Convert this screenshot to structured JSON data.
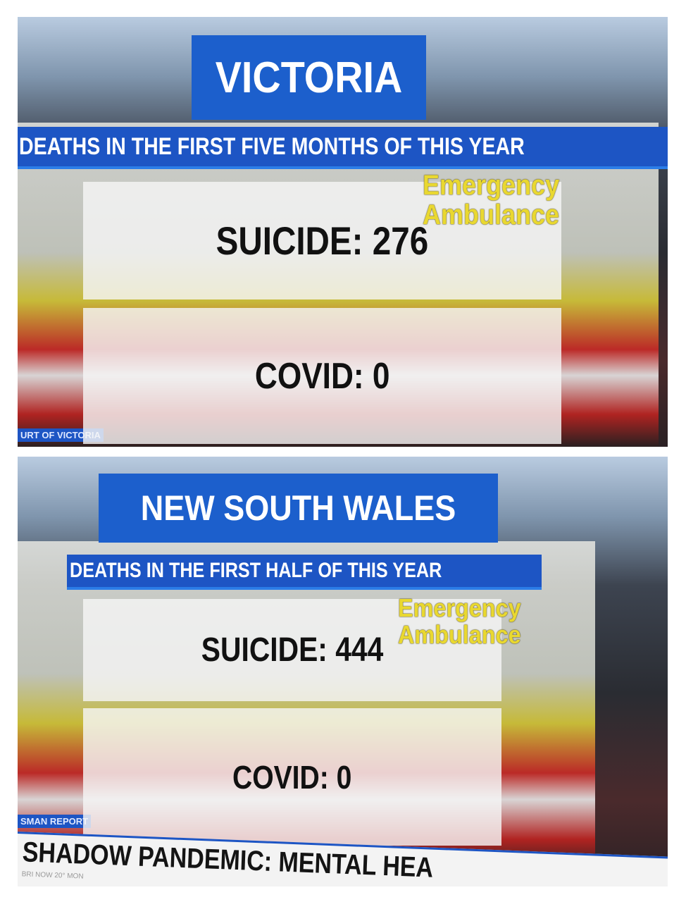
{
  "panels": [
    {
      "region": "VICTORIA",
      "subtitle": "DEATHS IN THE FIRST FIVE MONTHS OF THIS YEAR",
      "suicide": "SUICIDE: 276",
      "covid": "COVID: 0",
      "vehicle_text": [
        "Emergency",
        "Ambulance"
      ],
      "corner_tag": "URT OF VICTORIA"
    },
    {
      "region": "NEW SOUTH WALES",
      "subtitle": "DEATHS IN THE FIRST HALF OF THIS YEAR",
      "suicide": "SUICIDE: 444",
      "covid": "COVID: 0",
      "vehicle_text": [
        "Emergency",
        "Ambulance"
      ],
      "corner_tag": "SMAN REPORT",
      "ticker": "SHADOW PANDEMIC: MENTAL HEA",
      "ticker_sub": "BRI NOW 20°  MON"
    }
  ],
  "colors": {
    "banner_blue": "#1c5fcc",
    "card_white": "#f5f5f5",
    "ambulance_yellow": "#e9d830"
  }
}
